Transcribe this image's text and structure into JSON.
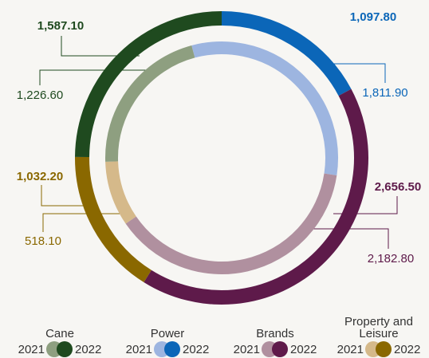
{
  "chart_data": {
    "type": "donut",
    "categories": [
      "Cane",
      "Power",
      "Brands",
      "Property and Leisure"
    ],
    "series": [
      {
        "name": "2021",
        "colors": [
          "#8e9f80",
          "#9db5e0",
          "#b0909f",
          "#d5b98a"
        ],
        "values": [
          1226.6,
          1811.9,
          2182.8,
          518.1
        ],
        "value_labels": [
          "1,226.60",
          "1,811.90",
          "2,182.80",
          "518.10"
        ]
      },
      {
        "name": "2022",
        "colors": [
          "#1f4a1f",
          "#0b66b8",
          "#5e1a4a",
          "#8a6800"
        ],
        "values": [
          1587.1,
          1097.8,
          2656.5,
          1032.2
        ],
        "value_labels": [
          "1,587.10",
          "1,097.80",
          "2,656.50",
          "1,032.20"
        ]
      }
    ]
  }
}
